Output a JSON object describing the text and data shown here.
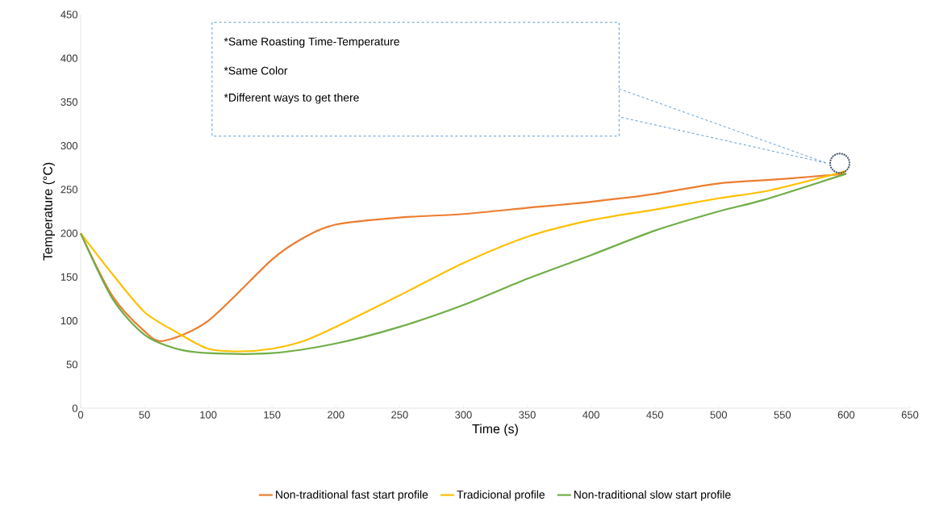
{
  "chart_data": {
    "type": "line",
    "xlabel": "Time (s)",
    "ylabel": "Temperature (°C)",
    "xlim": [
      0,
      650
    ],
    "xticks": [
      0,
      50,
      100,
      150,
      200,
      250,
      300,
      350,
      400,
      450,
      500,
      550,
      600,
      650
    ],
    "ylim": [
      0,
      450
    ],
    "yticks": [
      0,
      50,
      100,
      150,
      200,
      250,
      300,
      350,
      400,
      450
    ],
    "grid": false,
    "legend": "bottom",
    "marker": "none",
    "line_style": "solid",
    "annotations": [
      "*Same Roasting Time-Temperature",
      "*Same Color",
      "*Different ways to get there"
    ],
    "series": [
      {
        "name": "Non-traditional fast start profile",
        "color": "#ed7d31",
        "x": [
          0,
          25,
          50,
          65,
          100,
          150,
          175,
          200,
          250,
          300,
          350,
          400,
          450,
          500,
          550,
          600
        ],
        "values": [
          200,
          128,
          88,
          77,
          100,
          170,
          195,
          210,
          218,
          222,
          229,
          236,
          245,
          257,
          262,
          268
        ]
      },
      {
        "name": "Tradicional profile",
        "color": "#ffc000",
        "x": [
          0,
          25,
          50,
          75,
          100,
          125,
          150,
          175,
          200,
          250,
          300,
          350,
          400,
          450,
          500,
          540,
          600
        ],
        "values": [
          200,
          153,
          110,
          87,
          68,
          65,
          68,
          77,
          93,
          129,
          166,
          196,
          215,
          227,
          240,
          249,
          271
        ]
      },
      {
        "name": "Non-traditional slow start profile",
        "color": "#70ad47",
        "x": [
          0,
          25,
          50,
          75,
          100,
          150,
          200,
          250,
          300,
          350,
          400,
          450,
          500,
          535,
          600
        ],
        "values": [
          200,
          125,
          84,
          68,
          63,
          63,
          74,
          93,
          118,
          148,
          175,
          203,
          225,
          238,
          268
        ]
      }
    ]
  }
}
